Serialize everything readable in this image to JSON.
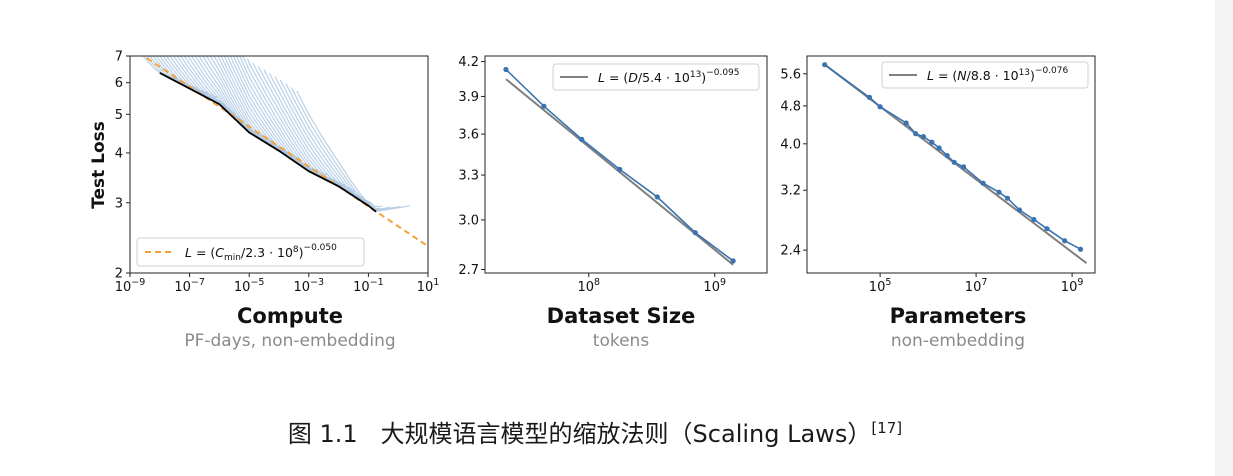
{
  "caption": {
    "label": "图 1.1",
    "text": "大规模语言模型的缩放法则（Scaling Laws）",
    "ref": "[17]"
  },
  "colors": {
    "fit_line": "#808080",
    "data": "#3a73b0",
    "frontier": "#000000",
    "curves": "#a9c4e0",
    "compute_fit": "#f5a139"
  },
  "chart_data": [
    {
      "type": "line",
      "title": "Compute",
      "subtitle": "PF-days, non-embedding",
      "xlabel": "",
      "ylabel": "Test Loss",
      "xscale": "log",
      "yscale": "log",
      "xlim": [
        1e-09,
        10
      ],
      "ylim": [
        2,
        7
      ],
      "x_ticks": [
        1e-09,
        1e-07,
        1e-05,
        0.001,
        0.1,
        10
      ],
      "y_ticks": [
        2,
        3,
        4,
        5,
        6,
        7
      ],
      "legend": "lower-left",
      "fit": {
        "label": "L = (C_min/2.3·10^8)^-0.050",
        "a": 230000000.0,
        "b": 0.05
      },
      "frontier": {
        "x": [
          1e-08,
          1e-07,
          1e-06,
          1e-05,
          0.0001,
          0.001,
          0.01,
          0.1,
          0.18
        ],
        "y": [
          6.35,
          5.8,
          5.3,
          4.5,
          4.05,
          3.6,
          3.3,
          2.95,
          2.85
        ]
      },
      "curve_count": 40
    },
    {
      "type": "line",
      "title": "Dataset Size",
      "subtitle": "tokens",
      "xlabel": "",
      "ylabel": "",
      "xscale": "log",
      "yscale": "log",
      "xlim": [
        15000000.0,
        2600000000.0
      ],
      "ylim": [
        2.68,
        4.25
      ],
      "x_ticks": [
        100000000.0,
        1000000000.0
      ],
      "y_ticks": [
        2.7,
        3.0,
        3.3,
        3.6,
        3.9,
        4.2
      ],
      "legend": "upper-right",
      "fit": {
        "label": "L = (D/5.4·10^13)^-0.095",
        "a": 54000000000000.0,
        "b": 0.095
      },
      "points": {
        "x": [
          22000000.0,
          44000000.0,
          88000000.0,
          176000000.0,
          350000000.0,
          700000000.0,
          1400000000.0
        ],
        "y": [
          4.13,
          3.82,
          3.56,
          3.34,
          3.15,
          2.92,
          2.75
        ]
      }
    },
    {
      "type": "line",
      "title": "Parameters",
      "subtitle": "non-embedding",
      "xlabel": "",
      "ylabel": "",
      "xscale": "log",
      "yscale": "log",
      "xlim": [
        3000.0,
        3000000000.0
      ],
      "ylim": [
        2.15,
        6.1
      ],
      "x_ticks": [
        100000.0,
        10000000.0,
        1000000000.0
      ],
      "y_ticks": [
        2.4,
        3.2,
        4.0,
        4.8,
        5.6
      ],
      "legend": "upper-right",
      "fit": {
        "label": "L = (N/8.8·10^13)^-0.076",
        "a": 88000000000000.0,
        "b": 0.076
      },
      "points": {
        "x": [
          7000.0,
          60000.0,
          100000.0,
          350000.0,
          550000.0,
          800000.0,
          1200000.0,
          1700000.0,
          2500000.0,
          3500000.0,
          5500000.0,
          14000000.0,
          30000000.0,
          45000000.0,
          80000000.0,
          160000000.0,
          300000000.0,
          700000000.0,
          1500000000.0
        ],
        "y": [
          5.85,
          5.0,
          4.78,
          4.42,
          4.2,
          4.14,
          4.03,
          3.92,
          3.78,
          3.66,
          3.58,
          3.31,
          3.17,
          3.08,
          2.91,
          2.78,
          2.66,
          2.51,
          2.41
        ]
      }
    }
  ]
}
